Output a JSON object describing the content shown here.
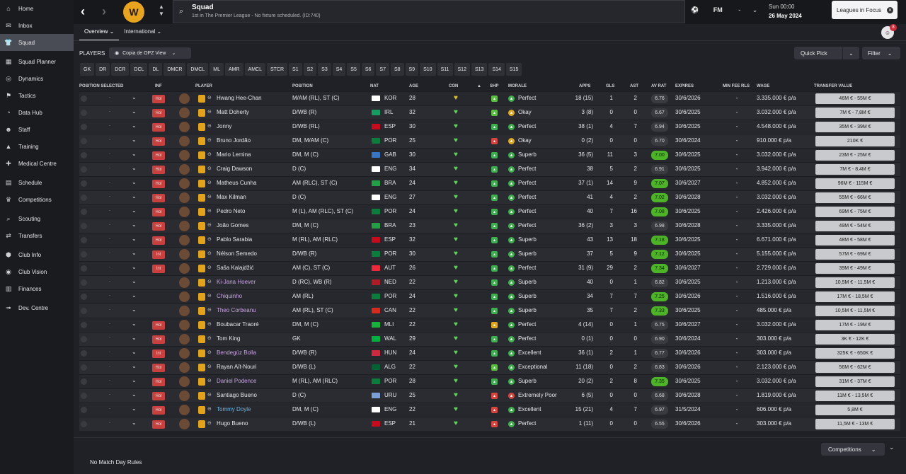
{
  "sidebar": {
    "items": [
      {
        "label": "Home",
        "icon": "⌂",
        "name": "home"
      },
      {
        "label": "Inbox",
        "icon": "✉",
        "name": "inbox"
      },
      {
        "label": "Squad",
        "icon": "👕",
        "name": "squad",
        "active": true
      },
      {
        "label": "Squad Planner",
        "icon": "▦",
        "name": "squad-planner"
      },
      {
        "label": "Dynamics",
        "icon": "◎",
        "name": "dynamics"
      },
      {
        "label": "Tactics",
        "icon": "⚑",
        "name": "tactics"
      },
      {
        "label": "Data Hub",
        "icon": "◔",
        "name": "data-hub"
      },
      {
        "label": "Staff",
        "icon": "☻",
        "name": "staff"
      },
      {
        "label": "Training",
        "icon": "▲",
        "name": "training"
      },
      {
        "label": "Medical Centre",
        "icon": "✚",
        "name": "medical-centre"
      },
      {
        "label": "Schedule",
        "icon": "▤",
        "name": "schedule"
      },
      {
        "label": "Competitions",
        "icon": "♛",
        "name": "competitions"
      },
      {
        "label": "Scouting",
        "icon": "⌕",
        "name": "scouting"
      },
      {
        "label": "Transfers",
        "icon": "⇄",
        "name": "transfers"
      },
      {
        "label": "Club Info",
        "icon": "⬢",
        "name": "club-info"
      },
      {
        "label": "Club Vision",
        "icon": "◉",
        "name": "club-vision"
      },
      {
        "label": "Finances",
        "icon": "▥",
        "name": "finances"
      },
      {
        "label": "Dev. Centre",
        "icon": "➟",
        "name": "dev-centre"
      }
    ]
  },
  "topbar": {
    "title": "Squad",
    "subtitle": "1st in The Premier League - No fixture scheduled. (ID:740)",
    "fm_label": "FM",
    "dash": "-",
    "time": "Sun 00:00",
    "date": "26 May 2024",
    "focus_label": "Leagues in Focus",
    "notif_count": "8"
  },
  "tabs": [
    {
      "label": "Overview",
      "active": true
    },
    {
      "label": "International",
      "active": false
    }
  ],
  "players_label": "PLAYERS",
  "view_label": "Copia de OPZ View",
  "quick_pick": "Quick Pick",
  "filter": "Filter",
  "positions": [
    "GK",
    "DR",
    "DCR",
    "DCL",
    "DL",
    "DMCR",
    "DMCL",
    "ML",
    "AMR",
    "AMCL",
    "STCR",
    "S1",
    "S2",
    "S3",
    "S4",
    "S5",
    "S6",
    "S7",
    "S8",
    "S9",
    "S10",
    "S11",
    "S12",
    "S13",
    "S14",
    "S15"
  ],
  "columns": {
    "position_selected": "POSITION SELECTED",
    "inf": "INF",
    "player": "PLAYER",
    "position": "POSITION",
    "nat": "NAT",
    "age": "AGE",
    "con": "CON",
    "shp": "SHP",
    "morale": "MORALE",
    "apps": "APPS",
    "gls": "GLS",
    "ast": "AST",
    "av_rat": "AV RAT",
    "expires": "EXPIRES",
    "min_fee": "MIN FEE RLS",
    "wage": "WAGE",
    "transfer_value": "TRANSFER VALUE"
  },
  "rows": [
    {
      "inf": "Hol",
      "name": "Hwang Hee-Chan",
      "pos": "M/AM (RL), ST (C)",
      "nat": "KOR",
      "flag": "#ffffff",
      "age": "28",
      "con": "#d8c22a",
      "shp": "#5bbf3f",
      "morale": "Perfect",
      "mc": "#3fb04b",
      "apps": "18 (15)",
      "gls": "1",
      "ast": "2",
      "rat": "6.76",
      "hi": false,
      "exp": "30/6/2026",
      "fee": "-",
      "wage": "3.335.000 € p/a",
      "tv": "46M € - 55M €",
      "style": ""
    },
    {
      "inf": "Hol",
      "name": "Matt Doherty",
      "pos": "D/WB (R)",
      "nat": "IRL",
      "flag": "#169b62",
      "age": "32",
      "con": "#5fd45a",
      "shp": "#5bbf3f",
      "morale": "Okay",
      "mc": "#e0a81c",
      "apps": "3 (8)",
      "gls": "0",
      "ast": "0",
      "rat": "6.67",
      "hi": false,
      "exp": "30/6/2025",
      "fee": "-",
      "wage": "3.032.000 € p/a",
      "tv": "7M € - 7,8M €",
      "style": ""
    },
    {
      "inf": "Hol",
      "name": "Jonny",
      "pos": "D/WB (RL)",
      "nat": "ESP",
      "flag": "#c60b1e",
      "age": "30",
      "con": "#5fd45a",
      "shp": "#3fae51",
      "morale": "Perfect",
      "mc": "#3fb04b",
      "apps": "38 (1)",
      "gls": "4",
      "ast": "7",
      "rat": "6.94",
      "hi": false,
      "exp": "30/6/2025",
      "fee": "-",
      "wage": "4.548.000 € p/a",
      "tv": "35M € - 39M €",
      "style": ""
    },
    {
      "inf": "Hol",
      "name": "Bruno Jordão",
      "pos": "DM, M/AM (C)",
      "nat": "POR",
      "flag": "#0a7d3c",
      "age": "25",
      "con": "#5fd45a",
      "shp": "#d9453e",
      "morale": "Okay",
      "mc": "#e0a81c",
      "apps": "0 (2)",
      "gls": "0",
      "ast": "0",
      "rat": "6.70",
      "hi": false,
      "exp": "30/6/2024",
      "fee": "-",
      "wage": "910.000 € p/a",
      "tv": "210K €",
      "style": ""
    },
    {
      "inf": "Hol",
      "name": "Mario Lemina",
      "pos": "DM, M (C)",
      "nat": "GAB",
      "flag": "#3a75c4",
      "age": "30",
      "con": "#5fd45a",
      "shp": "#3fae51",
      "morale": "Superb",
      "mc": "#3fb04b",
      "apps": "36 (5)",
      "gls": "11",
      "ast": "3",
      "rat": "7.00",
      "hi": true,
      "exp": "30/6/2025",
      "fee": "-",
      "wage": "3.032.000 € p/a",
      "tv": "23M € - 25M €",
      "style": ""
    },
    {
      "inf": "Hol",
      "name": "Craig Dawson",
      "pos": "D (C)",
      "nat": "ENG",
      "flag": "#ffffff",
      "age": "34",
      "con": "#5fd45a",
      "shp": "#3fae51",
      "morale": "Perfect",
      "mc": "#3fb04b",
      "apps": "38",
      "gls": "5",
      "ast": "2",
      "rat": "6.91",
      "hi": false,
      "exp": "30/6/2025",
      "fee": "-",
      "wage": "3.942.000 € p/a",
      "tv": "7M € - 8,4M €",
      "style": ""
    },
    {
      "inf": "Hol",
      "name": "Matheus Cunha",
      "pos": "AM (RLC), ST (C)",
      "nat": "BRA",
      "flag": "#229e45",
      "age": "24",
      "con": "#5fd45a",
      "shp": "#3fae51",
      "morale": "Perfect",
      "mc": "#3fb04b",
      "apps": "37 (1)",
      "gls": "14",
      "ast": "9",
      "rat": "7.07",
      "hi": true,
      "exp": "30/6/2027",
      "fee": "-",
      "wage": "4.852.000 € p/a",
      "tv": "96M € - 115M €",
      "style": ""
    },
    {
      "inf": "Hol",
      "name": "Max Kilman",
      "pos": "D (C)",
      "nat": "ENG",
      "flag": "#ffffff",
      "age": "27",
      "con": "#5fd45a",
      "shp": "#3fae51",
      "morale": "Perfect",
      "mc": "#3fb04b",
      "apps": "41",
      "gls": "4",
      "ast": "2",
      "rat": "7.02",
      "hi": true,
      "exp": "30/6/2028",
      "fee": "-",
      "wage": "3.032.000 € p/a",
      "tv": "55M € - 66M €",
      "style": ""
    },
    {
      "inf": "Hol",
      "name": "Pedro Neto",
      "pos": "M (L), AM (RLC), ST (C)",
      "nat": "POR",
      "flag": "#0a7d3c",
      "age": "24",
      "con": "#5fd45a",
      "shp": "#3fae51",
      "morale": "Perfect",
      "mc": "#3fb04b",
      "apps": "40",
      "gls": "7",
      "ast": "16",
      "rat": "7.08",
      "hi": true,
      "exp": "30/6/2025",
      "fee": "-",
      "wage": "2.426.000 € p/a",
      "tv": "69M € - 75M €",
      "style": ""
    },
    {
      "inf": "Hol",
      "name": "João Gomes",
      "pos": "DM, M (C)",
      "nat": "BRA",
      "flag": "#229e45",
      "age": "23",
      "con": "#5fd45a",
      "shp": "#3fae51",
      "morale": "Perfect",
      "mc": "#3fb04b",
      "apps": "36 (2)",
      "gls": "3",
      "ast": "3",
      "rat": "6.98",
      "hi": false,
      "exp": "30/6/2028",
      "fee": "-",
      "wage": "3.335.000 € p/a",
      "tv": "49M € - 54M €",
      "style": ""
    },
    {
      "inf": "Hol",
      "name": "Pablo Sarabia",
      "pos": "M (RL), AM (RLC)",
      "nat": "ESP",
      "flag": "#c60b1e",
      "age": "32",
      "con": "#5fd45a",
      "shp": "#3fae51",
      "morale": "Superb",
      "mc": "#3fb04b",
      "apps": "43",
      "gls": "13",
      "ast": "18",
      "rat": "7.18",
      "hi": true,
      "exp": "30/6/2025",
      "fee": "-",
      "wage": "6.671.000 € p/a",
      "tv": "48M € - 58M €",
      "style": ""
    },
    {
      "inf": "Int",
      "name": "Nélson Semedo",
      "pos": "D/WB (R)",
      "nat": "POR",
      "flag": "#0a7d3c",
      "age": "30",
      "con": "#5fd45a",
      "shp": "#3fae51",
      "morale": "Superb",
      "mc": "#3fb04b",
      "apps": "37",
      "gls": "5",
      "ast": "9",
      "rat": "7.12",
      "hi": true,
      "exp": "30/6/2025",
      "fee": "-",
      "wage": "5.155.000 € p/a",
      "tv": "57M € - 69M €",
      "style": ""
    },
    {
      "inf": "Int",
      "name": "Saša Kalajdžić",
      "pos": "AM (C), ST (C)",
      "nat": "AUT",
      "flag": "#ed2939",
      "age": "26",
      "con": "#5fd45a",
      "shp": "#3fae51",
      "morale": "Perfect",
      "mc": "#3fb04b",
      "apps": "31 (9)",
      "gls": "29",
      "ast": "2",
      "rat": "7.34",
      "hi": true,
      "exp": "30/6/2027",
      "fee": "-",
      "wage": "2.729.000 € p/a",
      "tv": "39M € - 49M €",
      "style": ""
    },
    {
      "inf": "",
      "name": "Ki-Jana Hoever",
      "pos": "D (RC), WB (R)",
      "nat": "NED",
      "flag": "#ae1c28",
      "age": "22",
      "con": "#5fd45a",
      "shp": "#3fae51",
      "morale": "Superb",
      "mc": "#3fb04b",
      "apps": "40",
      "gls": "0",
      "ast": "1",
      "rat": "6.82",
      "hi": false,
      "exp": "30/6/2025",
      "fee": "-",
      "wage": "1.213.000 € p/a",
      "tv": "10,5M € - 11,5M €",
      "style": "link"
    },
    {
      "inf": "",
      "name": "Chiquinho",
      "pos": "AM (RL)",
      "nat": "POR",
      "flag": "#0a7d3c",
      "age": "24",
      "con": "#5fd45a",
      "shp": "#3fae51",
      "morale": "Superb",
      "mc": "#3fb04b",
      "apps": "34",
      "gls": "7",
      "ast": "7",
      "rat": "7.25",
      "hi": true,
      "exp": "30/6/2026",
      "fee": "-",
      "wage": "1.516.000 € p/a",
      "tv": "17M € - 18,5M €",
      "style": "link"
    },
    {
      "inf": "",
      "name": "Theo Corbeanu",
      "pos": "AM (RL), ST (C)",
      "nat": "CAN",
      "flag": "#d52b1e",
      "age": "22",
      "con": "#5fd45a",
      "shp": "#3fae51",
      "morale": "Superb",
      "mc": "#3fb04b",
      "apps": "35",
      "gls": "7",
      "ast": "2",
      "rat": "7.33",
      "hi": true,
      "exp": "30/6/2025",
      "fee": "-",
      "wage": "485.000 € p/a",
      "tv": "10,5M € - 11,5M €",
      "style": "link"
    },
    {
      "inf": "Hol",
      "name": "Boubacar Traoré",
      "pos": "DM, M (C)",
      "nat": "MLI",
      "flag": "#14b53a",
      "age": "22",
      "con": "#5fd45a",
      "shp": "#e0a81c",
      "morale": "Perfect",
      "mc": "#3fb04b",
      "apps": "4 (14)",
      "gls": "0",
      "ast": "1",
      "rat": "6.75",
      "hi": false,
      "exp": "30/6/2027",
      "fee": "-",
      "wage": "3.032.000 € p/a",
      "tv": "17M € - 19M €",
      "style": ""
    },
    {
      "inf": "Hol",
      "name": "Tom King",
      "pos": "GK",
      "nat": "WAL",
      "flag": "#00b140",
      "age": "29",
      "con": "#5fd45a",
      "shp": "#3fae51",
      "morale": "Perfect",
      "mc": "#3fb04b",
      "apps": "0 (1)",
      "gls": "0",
      "ast": "0",
      "rat": "6.90",
      "hi": false,
      "exp": "30/6/2024",
      "fee": "-",
      "wage": "303.000 € p/a",
      "tv": "3K € - 12K €",
      "style": ""
    },
    {
      "inf": "Int",
      "name": "Bendegúz Bolla",
      "pos": "D/WB (R)",
      "nat": "HUN",
      "flag": "#cd2a3e",
      "age": "24",
      "con": "#5fd45a",
      "shp": "#3fae51",
      "morale": "Excellent",
      "mc": "#3fb04b",
      "apps": "36 (1)",
      "gls": "2",
      "ast": "1",
      "rat": "6.77",
      "hi": false,
      "exp": "30/6/2026",
      "fee": "-",
      "wage": "303.000 € p/a",
      "tv": "325K € - 650K €",
      "style": "link"
    },
    {
      "inf": "Hol",
      "name": "Rayan Aït-Nouri",
      "pos": "D/WB (L)",
      "nat": "ALG",
      "flag": "#006233",
      "age": "22",
      "con": "#5fd45a",
      "shp": "#5bbf3f",
      "morale": "Exceptional",
      "mc": "#3fb04b",
      "apps": "11 (18)",
      "gls": "0",
      "ast": "2",
      "rat": "6.83",
      "hi": false,
      "exp": "30/6/2026",
      "fee": "-",
      "wage": "2.123.000 € p/a",
      "tv": "56M € - 62M €",
      "style": ""
    },
    {
      "inf": "Hol",
      "name": "Daniel Podence",
      "pos": "M (RL), AM (RLC)",
      "nat": "POR",
      "flag": "#0a7d3c",
      "age": "28",
      "con": "#5fd45a",
      "shp": "#3fae51",
      "morale": "Superb",
      "mc": "#3fb04b",
      "apps": "20 (2)",
      "gls": "2",
      "ast": "8",
      "rat": "7.35",
      "hi": true,
      "exp": "30/6/2025",
      "fee": "-",
      "wage": "3.032.000 € p/a",
      "tv": "31M € - 37M €",
      "style": "link"
    },
    {
      "inf": "Hol",
      "name": "Santiago Bueno",
      "pos": "D (C)",
      "nat": "URU",
      "flag": "#7b9fd4",
      "age": "25",
      "con": "#5fd45a",
      "shp": "#d9453e",
      "morale": "Extremely Poor",
      "mc": "#d9453e",
      "apps": "6 (5)",
      "gls": "0",
      "ast": "0",
      "rat": "6.68",
      "hi": false,
      "exp": "30/6/2028",
      "fee": "-",
      "wage": "1.819.000 € p/a",
      "tv": "11M € - 13,5M €",
      "style": ""
    },
    {
      "inf": "Hol",
      "name": "Tommy Doyle",
      "pos": "DM, M (C)",
      "nat": "ENG",
      "flag": "#ffffff",
      "age": "22",
      "con": "#5fd45a",
      "shp": "#d9453e",
      "morale": "Excellent",
      "mc": "#3fb04b",
      "apps": "15 (21)",
      "gls": "4",
      "ast": "7",
      "rat": "6.97",
      "hi": false,
      "exp": "31/5/2024",
      "fee": "-",
      "wage": "606.000 € p/a",
      "tv": "5,8M €",
      "style": "blue"
    },
    {
      "inf": "Hol",
      "name": "Hugo Bueno",
      "pos": "D/WB (L)",
      "nat": "ESP",
      "flag": "#c60b1e",
      "age": "21",
      "con": "#5fd45a",
      "shp": "#d9453e",
      "morale": "Perfect",
      "mc": "#3fb04b",
      "apps": "1 (11)",
      "gls": "0",
      "ast": "0",
      "rat": "6.55",
      "hi": false,
      "exp": "30/6/2026",
      "fee": "-",
      "wage": "303.000 € p/a",
      "tv": "11,5M € - 13M €",
      "style": ""
    }
  ],
  "footer": {
    "competitions": "Competitions",
    "rules": "No Match Day Rules"
  }
}
